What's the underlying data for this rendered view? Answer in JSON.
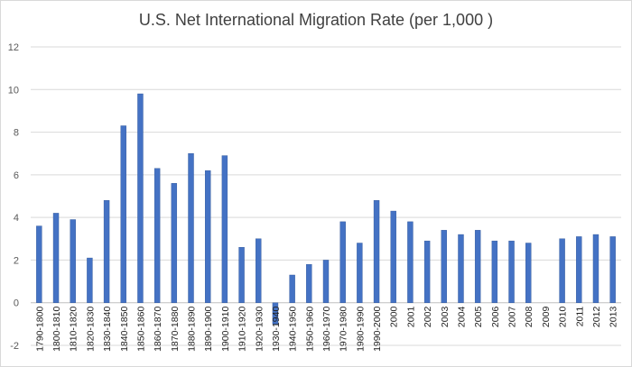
{
  "chart_data": {
    "type": "bar",
    "title": "U.S. Net International Migration Rate (per 1,000 )",
    "xlabel": "",
    "ylabel": "",
    "ylim": [
      -2,
      12
    ],
    "yticks": [
      -2,
      0,
      2,
      4,
      6,
      8,
      10,
      12
    ],
    "grid": true,
    "legend": "none",
    "categories": [
      "1790-1800",
      "1800-1810",
      "1810-1820",
      "1820-1830",
      "1830-1840",
      "1840-1850",
      "1850-1860",
      "1860-1870",
      "1870-1880",
      "1880-1890",
      "1890-1900",
      "1900-1910",
      "1910-1920",
      "1920-1930",
      "1930-1940",
      "1940-1950",
      "1950-1960",
      "1960-1970",
      "1970-1980",
      "1980-1990",
      "1990-2000",
      "2000",
      "2001",
      "2002",
      "2003",
      "2004",
      "2005",
      "2006",
      "2007",
      "2008",
      "2009",
      "2010",
      "2011",
      "2012",
      "2013"
    ],
    "values": [
      3.6,
      4.2,
      3.9,
      2.1,
      4.8,
      8.3,
      9.8,
      6.3,
      5.6,
      7.0,
      6.2,
      6.9,
      2.6,
      3.0,
      -1.0,
      1.3,
      1.8,
      2.0,
      3.8,
      2.8,
      4.8,
      4.3,
      3.8,
      2.9,
      3.4,
      3.2,
      3.4,
      2.9,
      2.9,
      2.8,
      null,
      3.0,
      3.1,
      3.2,
      3.1
    ],
    "colors": {
      "bar": "#4472c4",
      "grid": "#d9d9d9"
    }
  }
}
